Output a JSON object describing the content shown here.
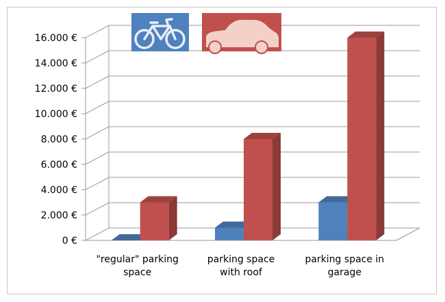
{
  "chart_data": {
    "type": "bar",
    "categories": [
      [
        "\"regular\" parking",
        "space"
      ],
      [
        "parking space",
        "with roof"
      ],
      [
        "parking space in",
        "garage"
      ]
    ],
    "series": [
      {
        "icon": "bicycle-icon",
        "color": "#4f81bd",
        "values": [
          0,
          1000,
          3000
        ]
      },
      {
        "icon": "car-icon",
        "color": "#c0504d",
        "values": [
          3000,
          8000,
          16000
        ]
      }
    ],
    "y_ticks": [
      "0 €",
      "2.000 €",
      "4.000 €",
      "6.000 €",
      "8.000 €",
      "10.000 €",
      "12.000 €",
      "14.000 €",
      "16.000 €"
    ],
    "ylim": [
      0,
      16000
    ],
    "y_step": 2000,
    "grid": true,
    "legend": "top-left"
  }
}
